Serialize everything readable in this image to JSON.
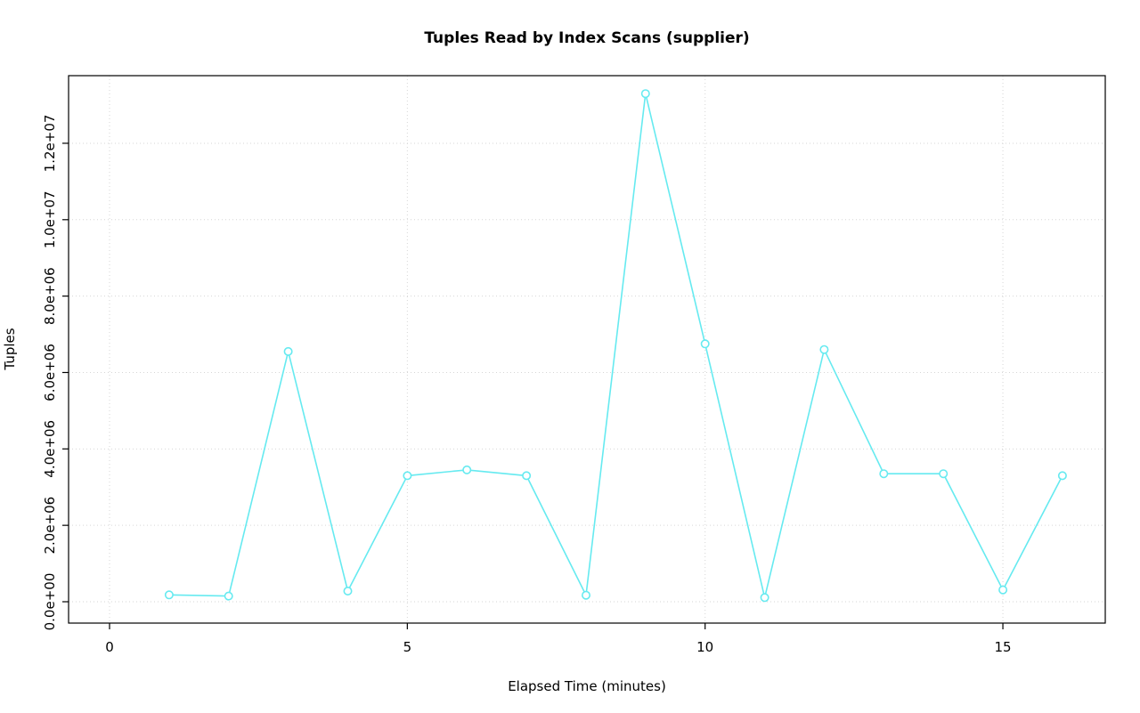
{
  "chart_data": {
    "type": "line",
    "title": "Tuples Read by Index Scans (supplier)",
    "xlabel": "Elapsed Time (minutes)",
    "ylabel": "Tuples",
    "x": [
      1,
      2,
      3,
      4,
      5,
      6,
      7,
      8,
      9,
      10,
      11,
      12,
      13,
      14,
      15,
      16
    ],
    "values": [
      180000,
      150000,
      6550000,
      280000,
      3300000,
      3450000,
      3300000,
      170000,
      13300000,
      6750000,
      110000,
      6600000,
      3350000,
      3350000,
      310000,
      3300000
    ],
    "x_ticks": [
      {
        "value": 0,
        "label": "0"
      },
      {
        "value": 5,
        "label": "5"
      },
      {
        "value": 10,
        "label": "10"
      },
      {
        "value": 15,
        "label": "15"
      }
    ],
    "y_ticks": [
      {
        "value": 0,
        "label": "0.0e+00"
      },
      {
        "value": 2000000,
        "label": "2.0e+06"
      },
      {
        "value": 4000000,
        "label": "4.0e+06"
      },
      {
        "value": 6000000,
        "label": "6.0e+06"
      },
      {
        "value": 8000000,
        "label": "8.0e+06"
      },
      {
        "value": 10000000,
        "label": "1.0e+07"
      },
      {
        "value": 12000000,
        "label": "1.2e+07"
      }
    ],
    "xlim": [
      0,
      16
    ],
    "ylim": [
      0,
      13400000
    ],
    "grid": true,
    "legend_position": "none",
    "point_style": "open-circle",
    "series_color": "#66EAF0",
    "grid_color": "#D6D6D6",
    "axis_color": "#000000"
  }
}
